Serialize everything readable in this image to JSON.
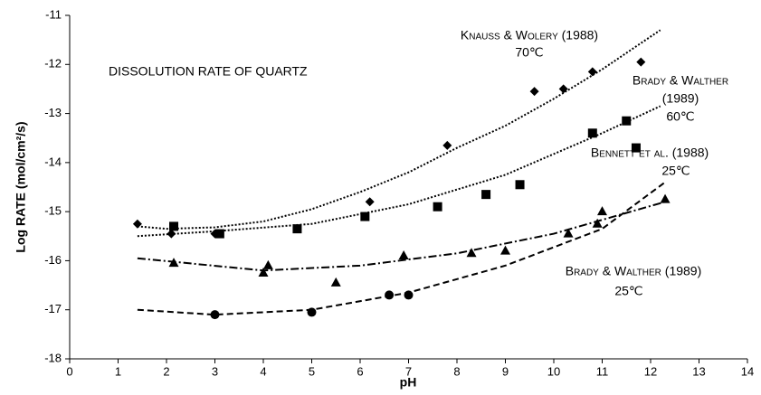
{
  "chart_data": {
    "type": "scatter",
    "xlabel": "pH",
    "ylabel": "Log RATE (mol/cm²/s)",
    "xlim": [
      0,
      14
    ],
    "ylim": [
      -18,
      -11
    ],
    "xticks": [
      0,
      1,
      2,
      3,
      4,
      5,
      6,
      7,
      8,
      9,
      10,
      11,
      12,
      13,
      14
    ],
    "yticks": [
      -11,
      -12,
      -13,
      -14,
      -15,
      -16,
      -17,
      -18
    ],
    "color": "#000000",
    "annotations": [
      "DISSOLUTION RATE OF QUARTZ",
      "Knauss & Wolery (1988)",
      "70℃",
      "Brady & Walther",
      "(1989)",
      "60℃",
      "Bennett et al. (1988)",
      "25℃",
      "Brady & Walther  (1989)",
      "25℃"
    ],
    "series": [
      {
        "marker": "diamond",
        "dash": "dot",
        "x": [
          1.4,
          2.1,
          3.0,
          6.2,
          7.8,
          9.6,
          10.2,
          10.8,
          11.8
        ],
        "values": [
          -15.25,
          -15.45,
          -15.45,
          -14.8,
          -13.65,
          -12.55,
          -12.5,
          -12.15,
          -11.95
        ],
        "fit_x": [
          1.4,
          2,
          3,
          4,
          5,
          6,
          7,
          8,
          9,
          10,
          11,
          12.2
        ],
        "fit_values": [
          -15.3,
          -15.35,
          -15.32,
          -15.2,
          -14.95,
          -14.6,
          -14.2,
          -13.7,
          -13.25,
          -12.7,
          -12.1,
          -11.3
        ]
      },
      {
        "marker": "square",
        "dash": "dot",
        "x": [
          2.15,
          3.1,
          4.7,
          6.1,
          7.6,
          8.6,
          9.3,
          10.8,
          11.5,
          11.7
        ],
        "values": [
          -15.3,
          -15.45,
          -15.35,
          -15.1,
          -14.9,
          -14.65,
          -14.45,
          -13.4,
          -13.15,
          -13.7
        ],
        "fit_x": [
          1.4,
          3,
          5,
          7,
          9,
          11,
          12.2
        ],
        "fit_values": [
          -15.5,
          -15.4,
          -15.25,
          -14.85,
          -14.25,
          -13.4,
          -12.85
        ]
      },
      {
        "marker": "triangle",
        "dash": "dashdot",
        "x": [
          2.15,
          4.0,
          4.1,
          5.5,
          6.9,
          8.3,
          9.0,
          10.3,
          10.9,
          11.0,
          12.3
        ],
        "values": [
          -16.05,
          -16.25,
          -16.1,
          -16.45,
          -15.9,
          -15.85,
          -15.8,
          -15.45,
          -15.25,
          -15.0,
          -14.75
        ],
        "fit_x": [
          1.4,
          4,
          6,
          8,
          10,
          12.3
        ],
        "fit_values": [
          -15.95,
          -16.2,
          -16.1,
          -15.85,
          -15.45,
          -14.8
        ]
      },
      {
        "marker": "circle",
        "dash": "dash",
        "x": [
          3.0,
          5.0,
          6.6,
          7.0
        ],
        "values": [
          -17.1,
          -17.05,
          -16.7,
          -16.7
        ],
        "fit_x": [
          1.4,
          3,
          5,
          7,
          9,
          11,
          12.3
        ],
        "fit_values": [
          -17.0,
          -17.1,
          -17.0,
          -16.65,
          -16.1,
          -15.35,
          -14.4
        ]
      }
    ]
  }
}
